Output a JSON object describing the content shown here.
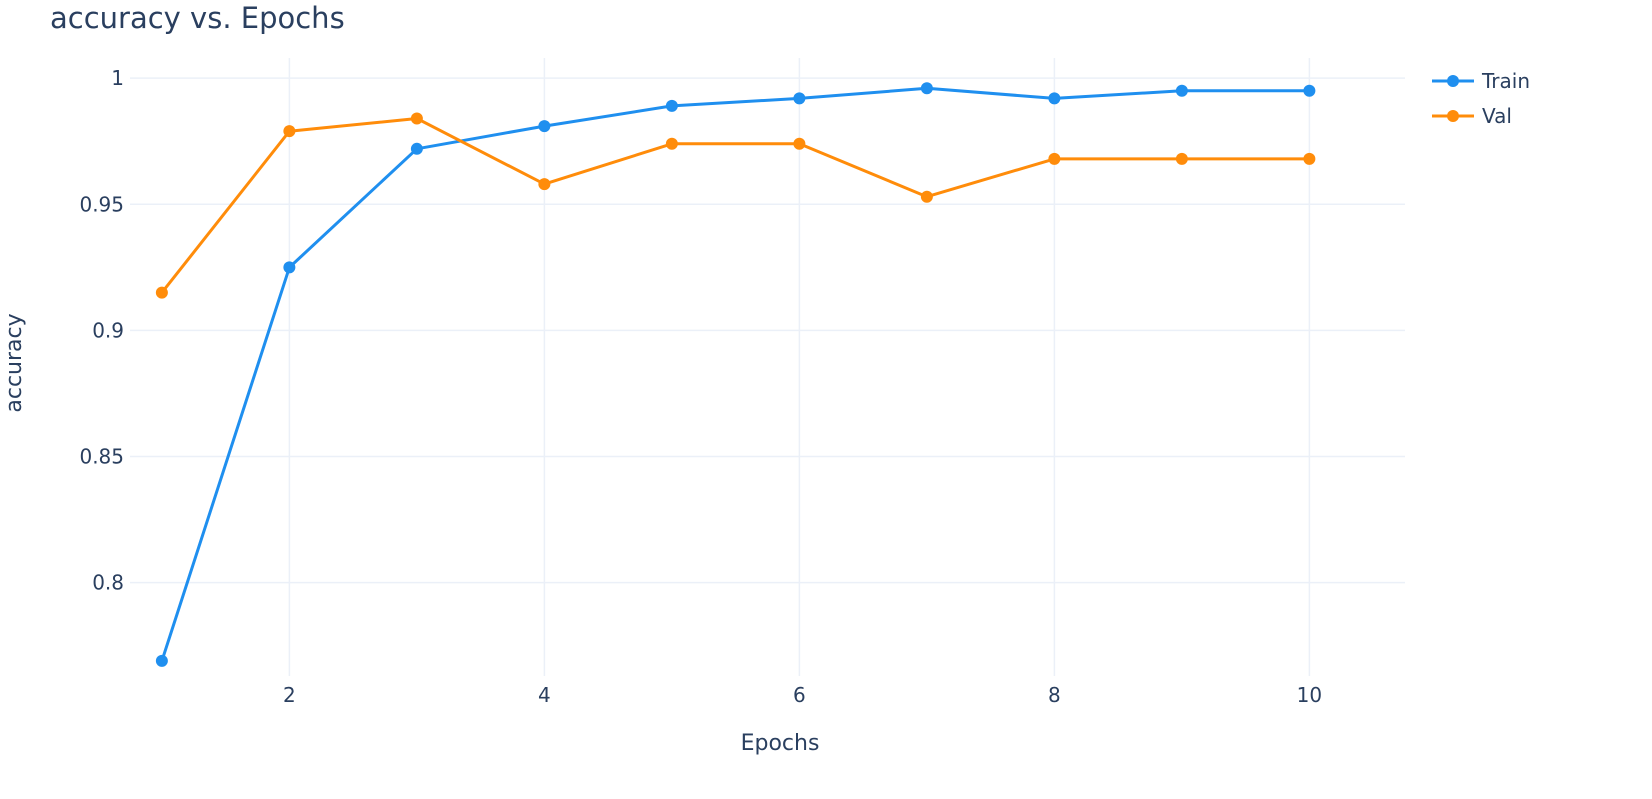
{
  "chart_data": {
    "type": "line",
    "title": "accuracy vs. Epochs",
    "xlabel": "Epochs",
    "ylabel": "accuracy",
    "x": [
      1,
      2,
      3,
      4,
      5,
      6,
      7,
      8,
      9,
      10
    ],
    "xlim": [
      0.75,
      10.75
    ],
    "ylim": [
      0.763,
      1.008
    ],
    "xticks": [
      2,
      4,
      6,
      8,
      10
    ],
    "yticks": [
      0.8,
      0.85,
      0.9,
      0.95,
      1
    ],
    "xtick_labels": [
      "2",
      "4",
      "6",
      "8",
      "10"
    ],
    "ytick_labels": [
      "0.8",
      "0.85",
      "0.9",
      "0.95",
      "1"
    ],
    "grid": true,
    "legend_position": "top-right",
    "series": [
      {
        "name": "Train",
        "color": "#1f8fef",
        "values": [
          0.769,
          0.925,
          0.972,
          0.981,
          0.989,
          0.992,
          0.996,
          0.992,
          0.995,
          0.995
        ]
      },
      {
        "name": "Val",
        "color": "#ff8c0a",
        "values": [
          0.915,
          0.979,
          0.984,
          0.958,
          0.974,
          0.974,
          0.953,
          0.968,
          0.968,
          0.968
        ]
      }
    ]
  }
}
